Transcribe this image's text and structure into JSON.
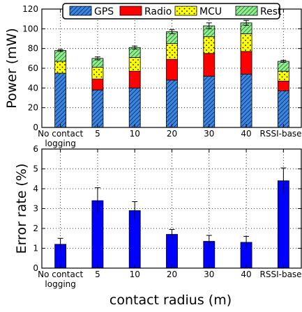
{
  "chart_data": [
    {
      "type": "bar",
      "stacked": true,
      "categories": [
        "No contact\nlogging",
        "5",
        "10",
        "20",
        "30",
        "40",
        "RSSI-based"
      ],
      "ylabel": "Power (mW)",
      "xlabel": "",
      "ylim": [
        0,
        120
      ],
      "yticks": [
        0,
        20,
        40,
        60,
        80,
        100,
        120
      ],
      "grid": true,
      "legend": "top",
      "series": [
        {
          "name": "GPS",
          "color": "#3a86e0",
          "pattern": "hatch-diagonal",
          "values": [
            55,
            38,
            40,
            48,
            52,
            54,
            37
          ]
        },
        {
          "name": "Radio",
          "color": "#ff0000",
          "pattern": "solid",
          "values": [
            0,
            11,
            17,
            21,
            23,
            23,
            10
          ]
        },
        {
          "name": "MCU",
          "color": "#ffff00",
          "pattern": "dots",
          "values": [
            12,
            12,
            14,
            16,
            17,
            18,
            10
          ]
        },
        {
          "name": "Rest",
          "color": "#90ee90",
          "pattern": "hatch-diagonal",
          "values": [
            11,
            9,
            10,
            12,
            11,
            11,
            10
          ]
        }
      ],
      "error_bars": [
        1,
        1.5,
        1.5,
        2,
        3,
        2.5,
        1
      ]
    },
    {
      "type": "bar",
      "categories": [
        "No contact\nlogging",
        "5",
        "10",
        "20",
        "30",
        "40",
        "RSSI-based"
      ],
      "ylabel": "Error rate (%)",
      "xlabel": "contact radius (m)",
      "ylim": [
        0,
        6
      ],
      "yticks": [
        0,
        1,
        2,
        3,
        4,
        5,
        6
      ],
      "grid": true,
      "color": "#0000ff",
      "values": [
        1.2,
        3.4,
        2.9,
        1.7,
        1.35,
        1.3,
        4.4
      ],
      "error_bars": [
        0.3,
        0.65,
        0.45,
        0.25,
        0.3,
        0.3,
        0.65
      ]
    }
  ]
}
